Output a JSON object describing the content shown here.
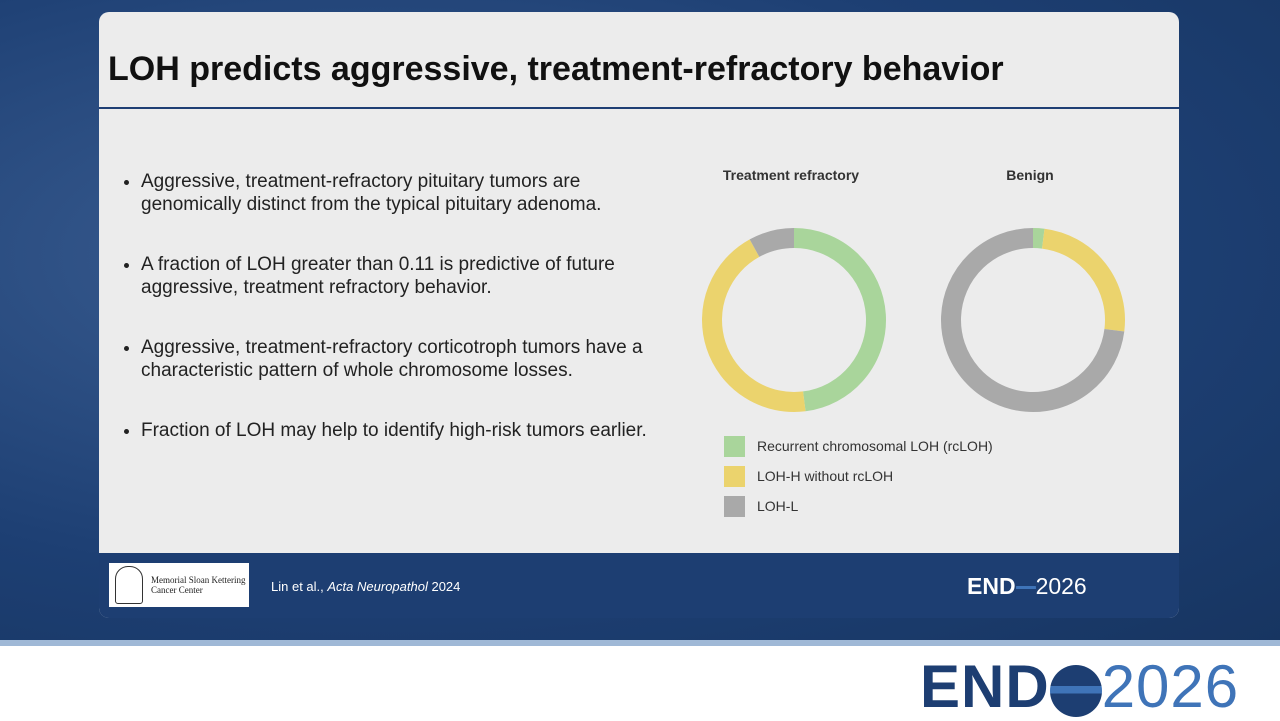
{
  "slide": {
    "title": "LOH predicts aggressive, treatment-refractory behavior",
    "bullets": [
      "Aggressive, treatment-refractory pituitary tumors are genomically distinct from the typical pituitary adenoma.",
      "A fraction of LOH greater than 0.11 is predictive of future aggressive, treatment refractory behavior.",
      "Aggressive, treatment-refractory corticotroph tumors have a characteristic pattern of whole chromosome losses.",
      "Fraction of LOH may help to identify high-risk tumors earlier."
    ],
    "citation": {
      "authors": "Lin et al.,",
      "journal": "Acta Neuropathol",
      "year": "2024"
    },
    "msk_logo": [
      "Memorial Sloan Kettering",
      "Cancer Center"
    ],
    "endo_logo": {
      "left": "END",
      "right": "2026"
    }
  },
  "legend": {
    "items": [
      {
        "name": "Recurrent chromosomal LOH (rcLOH)",
        "color": "#a9d59b"
      },
      {
        "name": "LOH-H without rcLOH",
        "color": "#ebd36d"
      },
      {
        "name": "LOH-L",
        "color": "#a9a9a9"
      }
    ]
  },
  "chart_data": [
    {
      "type": "donut",
      "title": "Treatment refractory",
      "values": [
        48,
        44,
        8
      ]
    },
    {
      "type": "donut",
      "title": "Benign",
      "values": [
        2,
        25,
        73
      ]
    }
  ]
}
